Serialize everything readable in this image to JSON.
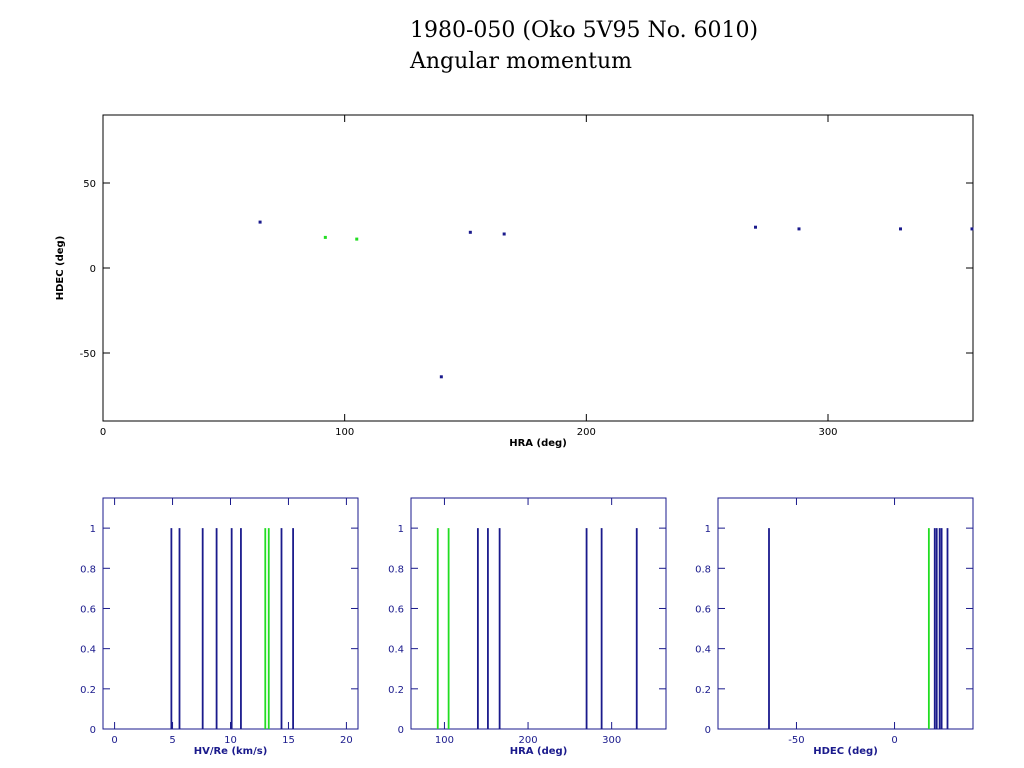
{
  "title_line1": "1980-050 (Oko 5V95 No. 6010)",
  "title_line2": "Angular momentum",
  "colors": {
    "primary": "#1a1a8c",
    "secondary": "#22dd22",
    "axis_bottom": "#1a1a8c",
    "axis_main": "#000000"
  },
  "chart_data": [
    {
      "type": "scatter",
      "xlabel": "HRA (deg)",
      "ylabel": "HDEC (deg)",
      "xlim": [
        0,
        360
      ],
      "ylim": [
        -90,
        90
      ],
      "xticks": [
        "0",
        "100",
        "200",
        "300"
      ],
      "yticks": [
        "-50",
        "0",
        "50"
      ],
      "series": [
        {
          "color": "primary",
          "points": [
            [
              65,
              27
            ],
            [
              152,
              21
            ],
            [
              166,
              20
            ],
            [
              140,
              -64
            ],
            [
              270,
              24
            ],
            [
              288,
              23
            ],
            [
              330,
              23
            ],
            [
              360,
              23
            ]
          ]
        },
        {
          "color": "secondary",
          "points": [
            [
              92,
              18
            ],
            [
              105,
              17
            ]
          ]
        }
      ]
    },
    {
      "type": "bar",
      "xlabel": "HV/Re (km/s)",
      "ylabel": "",
      "xlim": [
        -1,
        21
      ],
      "ylim": [
        0,
        1.15
      ],
      "xticks": [
        "0",
        "5",
        "10",
        "15",
        "20"
      ],
      "yticks": [
        "0",
        "0.2",
        "0.4",
        "0.6",
        "0.8",
        "1"
      ],
      "series": [
        {
          "color": "primary",
          "x": [
            4.9,
            5.6,
            7.6,
            8.8,
            10.1,
            10.9,
            14.4,
            15.4
          ],
          "values": [
            1,
            1,
            1,
            1,
            1,
            1,
            1,
            1
          ]
        },
        {
          "color": "secondary",
          "x": [
            13.0,
            13.3
          ],
          "values": [
            1,
            1
          ]
        }
      ]
    },
    {
      "type": "bar",
      "xlabel": "HRA (deg)",
      "ylabel": "",
      "xlim": [
        60,
        365
      ],
      "ylim": [
        0,
        1.15
      ],
      "xticks": [
        "100",
        "200",
        "300"
      ],
      "yticks": [
        "0",
        "0.2",
        "0.4",
        "0.6",
        "0.8",
        "1"
      ],
      "series": [
        {
          "color": "primary",
          "x": [
            140,
            152,
            166,
            270,
            288,
            330
          ],
          "values": [
            1,
            1,
            1,
            1,
            1,
            1
          ]
        },
        {
          "color": "secondary",
          "x": [
            92,
            105
          ],
          "values": [
            1,
            1
          ]
        }
      ]
    },
    {
      "type": "bar",
      "xlabel": "HDEC (deg)",
      "ylabel": "",
      "xlim": [
        -90,
        40
      ],
      "ylim": [
        0,
        1.15
      ],
      "xticks": [
        "-50",
        "0"
      ],
      "yticks": [
        "0",
        "0.2",
        "0.4",
        "0.6",
        "0.8",
        "1"
      ],
      "series": [
        {
          "color": "primary",
          "x": [
            -64,
            20.5,
            21.5,
            23,
            24,
            27
          ],
          "values": [
            1,
            1,
            1,
            1,
            1,
            1
          ]
        },
        {
          "color": "secondary",
          "x": [
            17.5
          ],
          "values": [
            1
          ]
        }
      ]
    }
  ]
}
